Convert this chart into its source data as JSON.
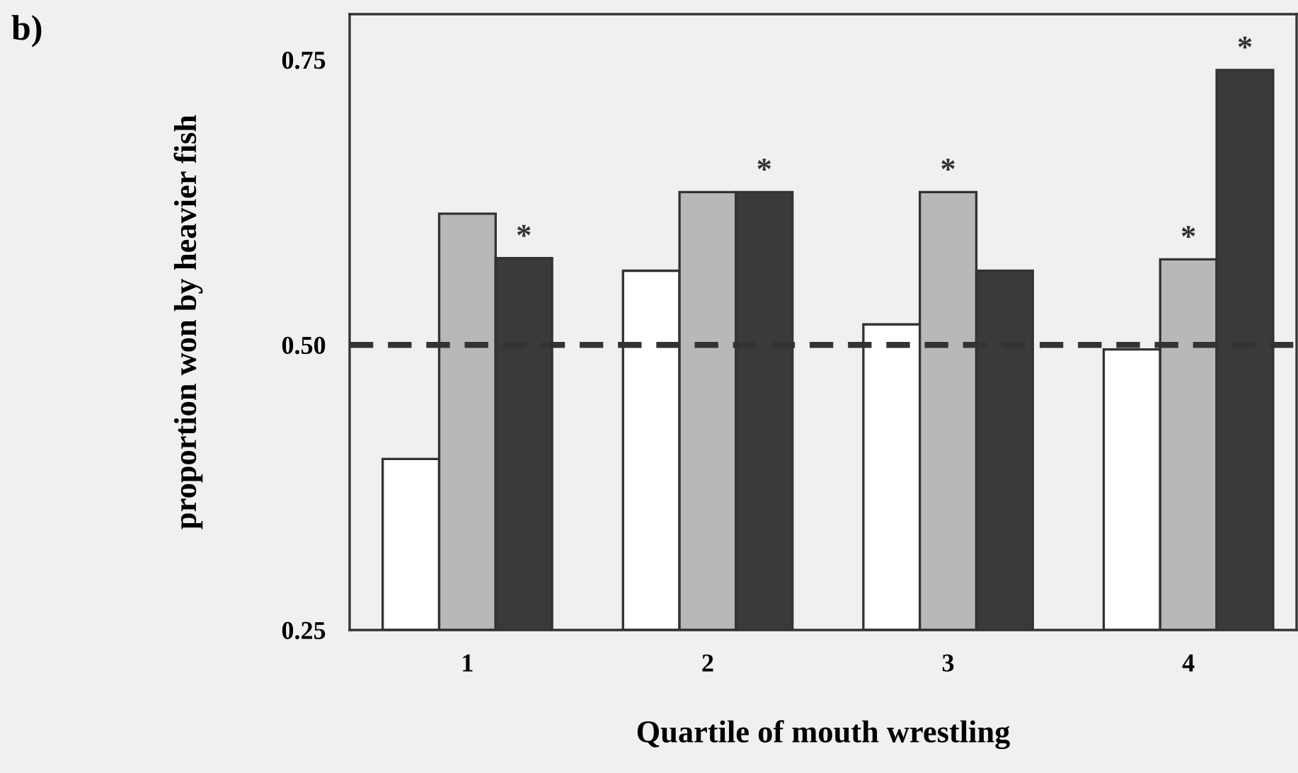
{
  "chart_data": {
    "type": "bar",
    "xlabel": "Quartile of mouth wrestling",
    "ylabel": "proportion won by heavier fish",
    "categories": [
      "1",
      "2",
      "3",
      "4"
    ],
    "series": [
      {
        "color": "#ffffff",
        "values": [
          0.4,
          0.565,
          0.518,
          0.496
        ]
      },
      {
        "color": "#b8b8b8",
        "values": [
          0.615,
          0.634,
          0.634,
          0.575
        ],
        "value_labels": [
          null,
          null,
          "*",
          "*"
        ]
      },
      {
        "color": "#3a3a3a",
        "values": [
          0.576,
          0.634,
          0.565,
          0.741
        ],
        "value_labels": [
          "*",
          "*",
          null,
          "*"
        ]
      }
    ],
    "ylim": [
      0.25,
      0.79
    ],
    "yticks": [
      {
        "value": 0.25,
        "label": "0.25"
      },
      {
        "value": 0.5,
        "label": "0.50"
      },
      {
        "value": 0.75,
        "label": "0.75"
      }
    ],
    "ref_lines": [
      {
        "axis": "y",
        "value": 0.5,
        "line_style": "dashed",
        "color": "#333333"
      }
    ],
    "annotations": [
      "b)"
    ],
    "grid": false,
    "legend": false
  }
}
